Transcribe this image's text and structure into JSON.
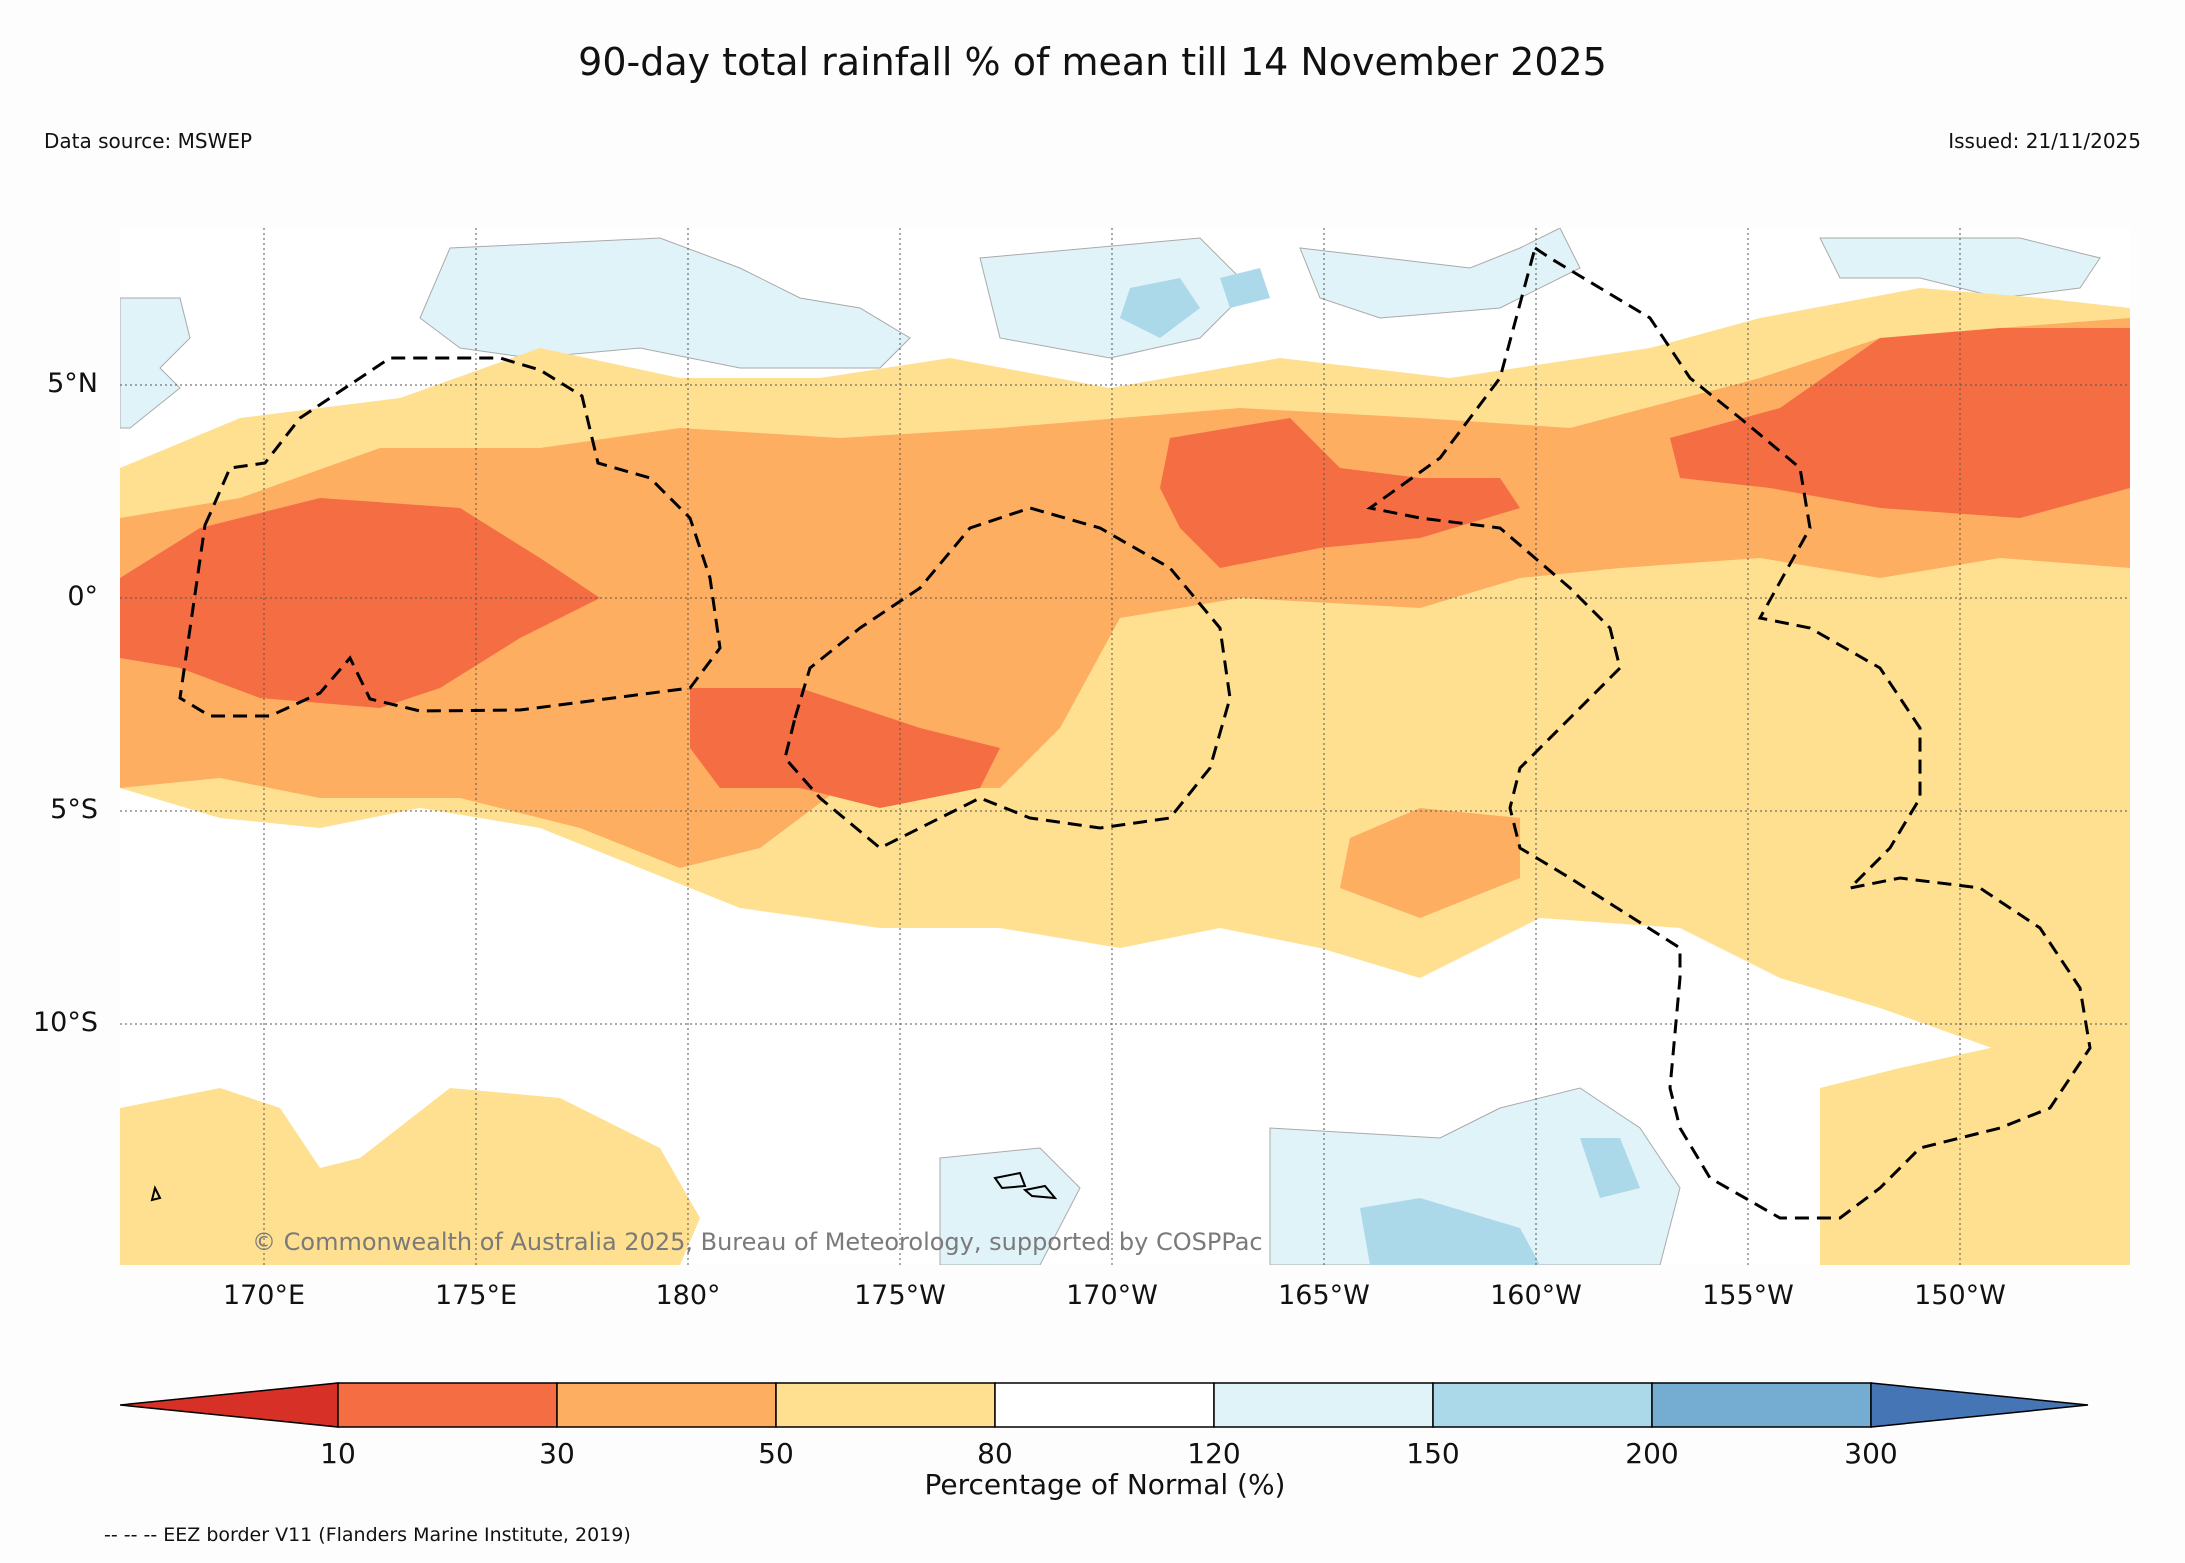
{
  "title": "90-day total rainfall % of mean till 14 November 2025",
  "data_source": "Data source: MSWEP",
  "issued": "Issued: 21/11/2025",
  "lat_labels": [
    "5°N",
    "0°",
    "5°S",
    "10°S"
  ],
  "lon_labels": [
    "170°E",
    "175°E",
    "180°",
    "175°W",
    "170°W",
    "165°W",
    "160°W",
    "155°W",
    "150°W"
  ],
  "copyright": "© Commonwealth of Australia 2025, Bureau of Meteorology, supported by COSPPac",
  "colorbar": {
    "label": "Percentage of Normal (%)",
    "ticks": [
      "10",
      "30",
      "50",
      "80",
      "120",
      "150",
      "200",
      "300"
    ],
    "colors": [
      "#d73027",
      "#f46d43",
      "#fdae61",
      "#fee090",
      "#ffffff",
      "#e0f3f8",
      "#abd9e9",
      "#74add1",
      "#4575b4"
    ]
  },
  "footer": "-- -- -- EEZ border V11 (Flanders Marine Institute, 2019)"
}
